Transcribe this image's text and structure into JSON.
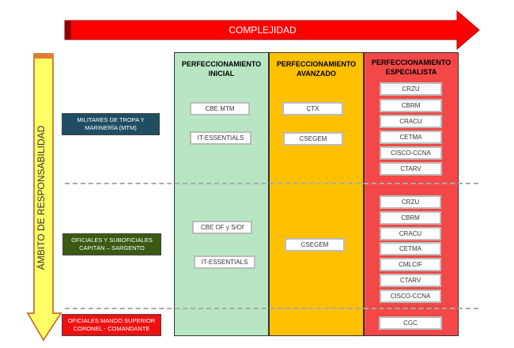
{
  "complexity_arrow": {
    "label": "COMPLEJIDAD",
    "color": "#ff0000"
  },
  "responsibility_arrow": {
    "label": "ÁMBITO DE RESPONSABILIDAD",
    "color": "#ffff66"
  },
  "levels": [
    {
      "label_1": "MILITARES  DE TROPA Y",
      "label_2": "MARINERÍA  (MTM)",
      "color": "#1f4e63"
    },
    {
      "label_1": "OFICIALES Y SUBOFICIALES",
      "label_2": "CAPITÁN – SARGENTO",
      "color": "#3a5a14"
    },
    {
      "label_1": "OFICIALES MANDO SUPERIOR",
      "label_2": "CORONEL - COMANDANTE",
      "color": "#ee1111"
    }
  ],
  "columns": [
    {
      "title_1": "PERFECCIONAMIENTO",
      "title_2": "INICIAL",
      "color": "#b8e6c2",
      "title_color": "#222"
    },
    {
      "title_1": "PERFECCIONAMIENTO",
      "title_2": "AVANZADO",
      "color": "#ffc000",
      "title_color": "#222"
    },
    {
      "title_1": "PERFECCIONAMIENTO",
      "title_2": "ESPECIALISTA",
      "color": "#f44848",
      "title_color": "#222"
    }
  ],
  "courses": {
    "inicial": [
      "CBE MTM",
      "IT-ESSENTIALS",
      "CBE OF y S/Of",
      "IT-ESSENTIALS"
    ],
    "avanzado": [
      "ÇTX",
      "CSEGEM",
      "CSEGEM"
    ],
    "especialista_mtm": [
      "CRZU",
      "CBRM",
      "CRACU",
      "CETMA",
      "CISCO-CCNA",
      "CTARV"
    ],
    "especialista_of": [
      "CRZU",
      "CBRM",
      "CRACU",
      "CETMA",
      "CMLCIF",
      "CTARV",
      "CISCO-CCNA"
    ],
    "especialista_sup": [
      "CGC"
    ]
  }
}
